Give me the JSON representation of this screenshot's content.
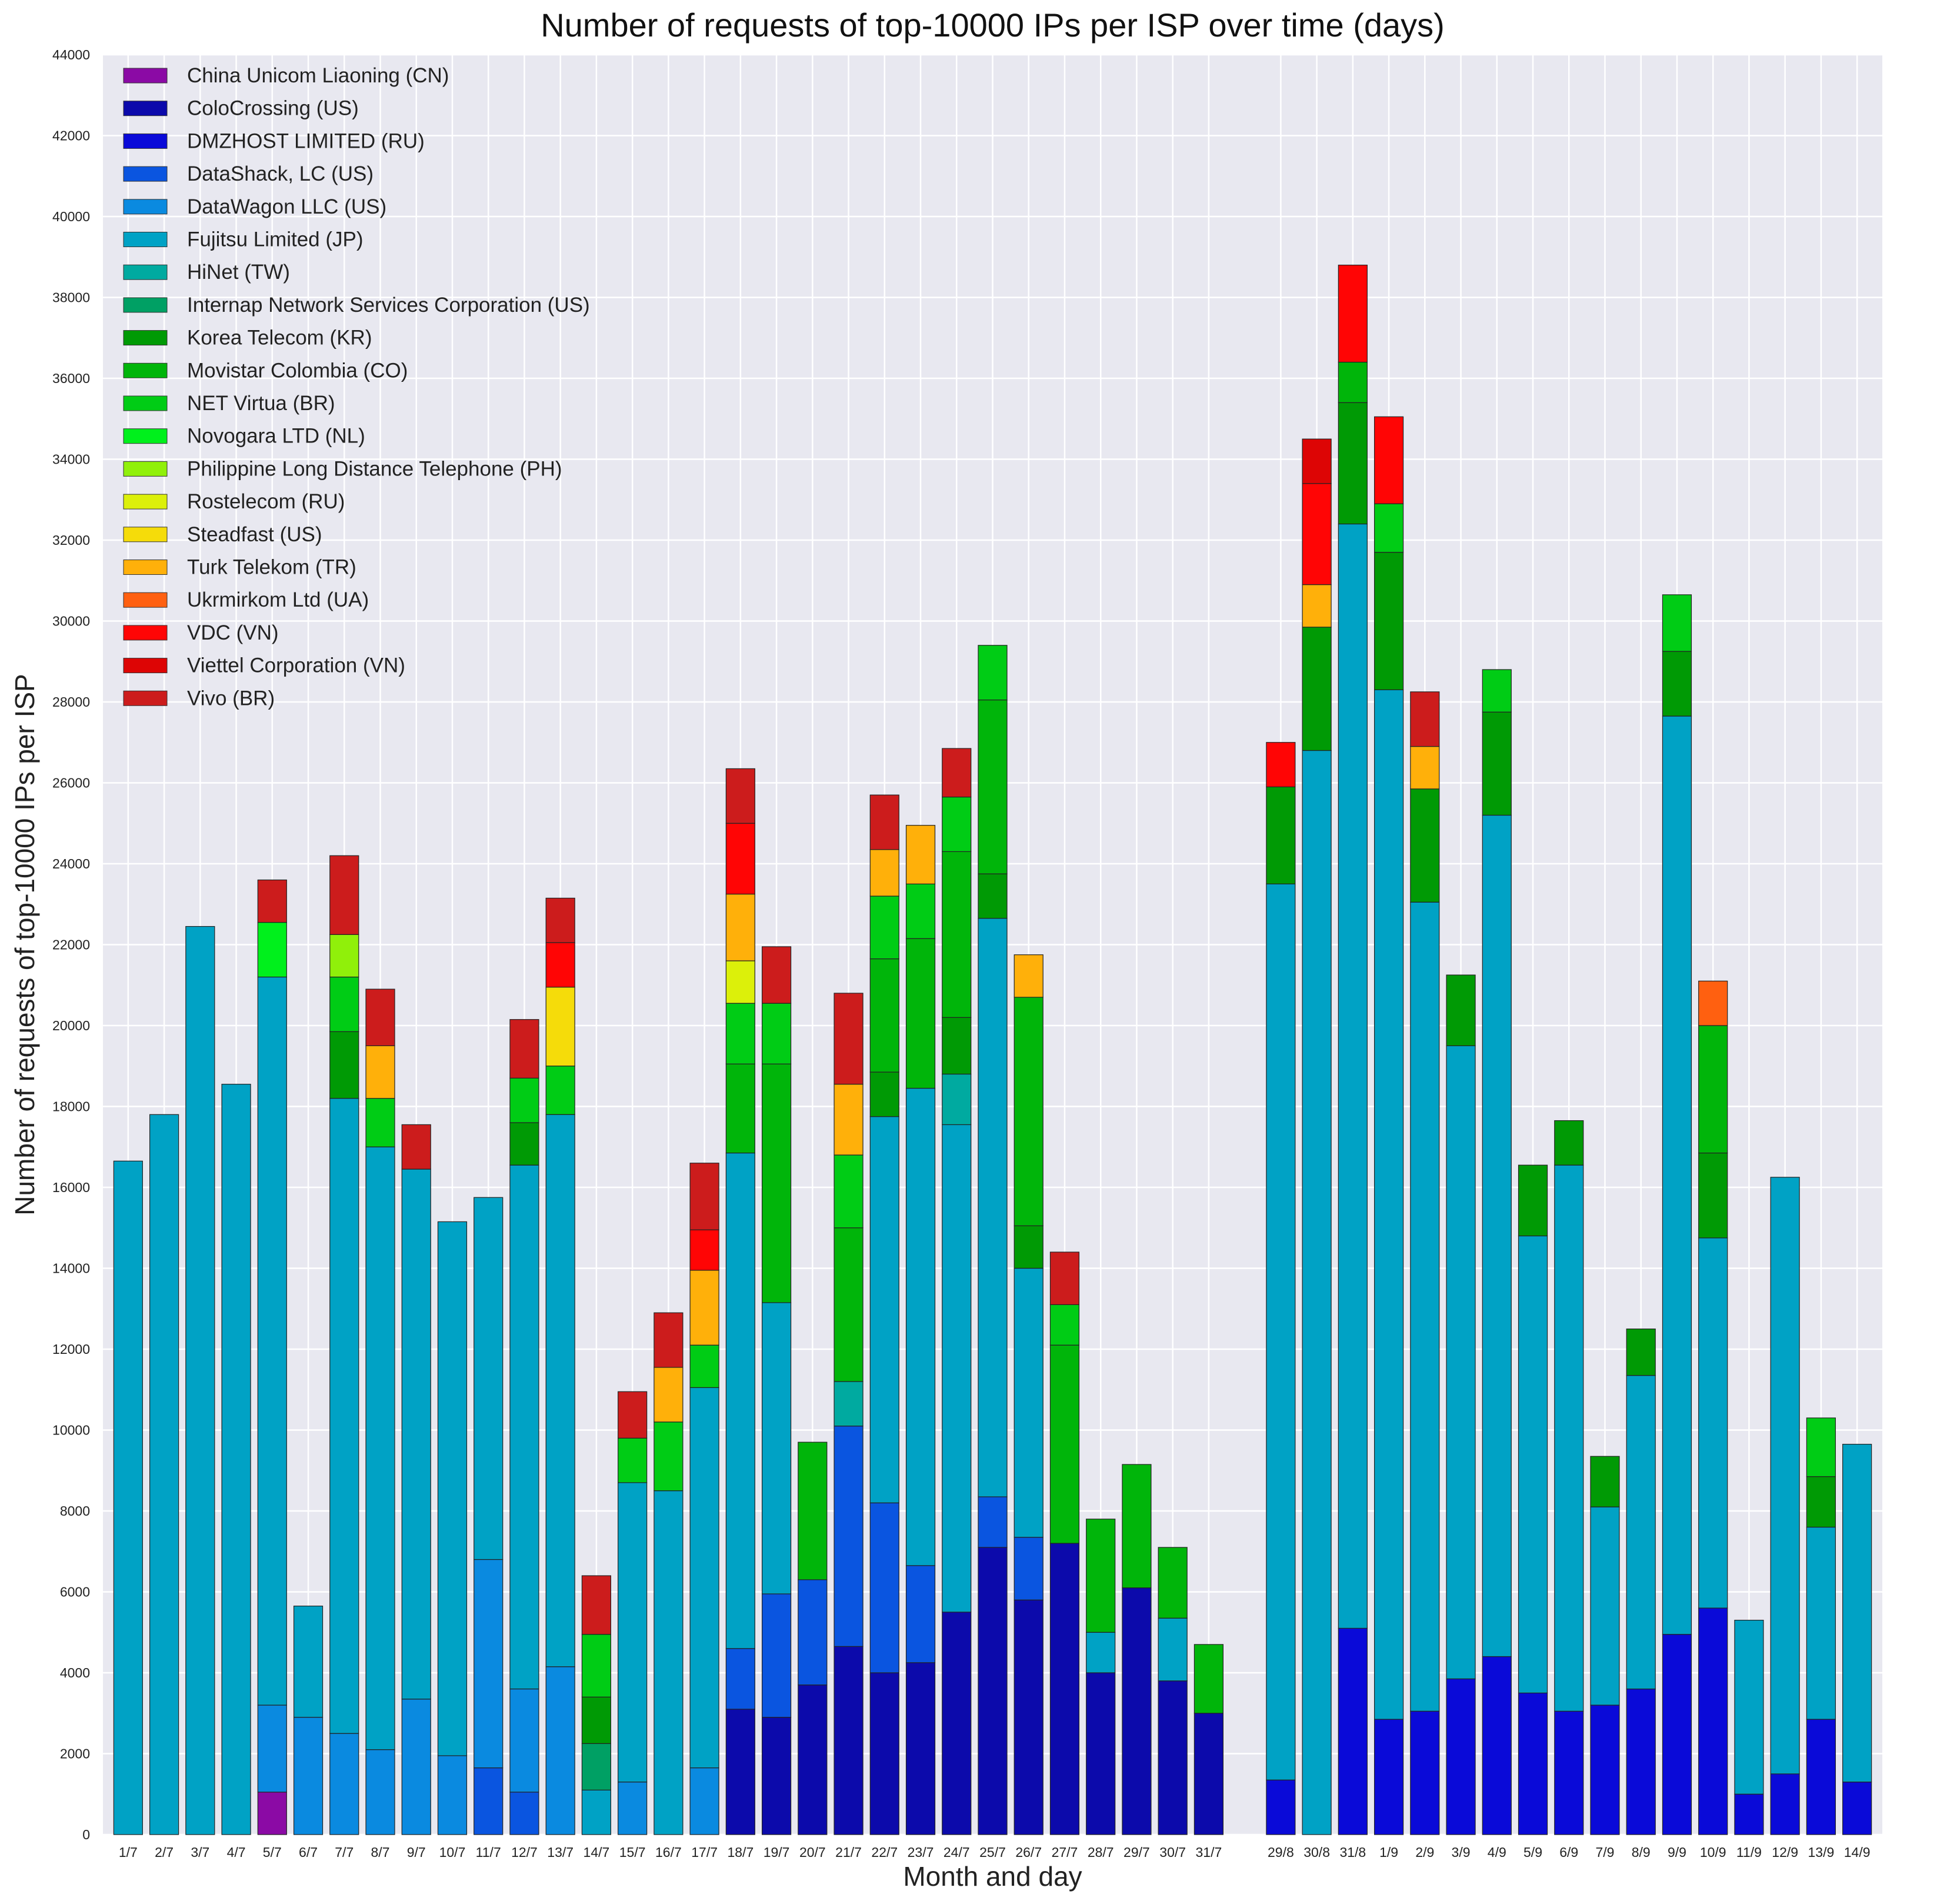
{
  "chart_data": {
    "type": "bar",
    "stacked": true,
    "title": "Number of requests of top-10000 IPs per ISP over time (days)",
    "xlabel": "Month and day",
    "ylabel": "Number of requests of top-10000 IPs per ISP",
    "ylim": [
      0,
      44000
    ],
    "yticks": [
      0,
      2000,
      4000,
      6000,
      8000,
      10000,
      12000,
      14000,
      16000,
      18000,
      20000,
      22000,
      24000,
      26000,
      28000,
      30000,
      32000,
      34000,
      36000,
      38000,
      40000,
      42000,
      44000
    ],
    "grid": true,
    "legend_position": "upper-left",
    "categories": [
      "1/7",
      "2/7",
      "3/7",
      "4/7",
      "5/7",
      "6/7",
      "7/7",
      "8/7",
      "9/7",
      "10/7",
      "11/7",
      "12/7",
      "13/7",
      "14/7",
      "15/7",
      "16/7",
      "17/7",
      "18/7",
      "19/7",
      "20/7",
      "21/7",
      "22/7",
      "23/7",
      "24/7",
      "25/7",
      "26/7",
      "27/7",
      "28/7",
      "29/7",
      "30/7",
      "31/7",
      "29/8",
      "30/8",
      "31/8",
      "1/9",
      "2/9",
      "3/9",
      "4/9",
      "5/9",
      "6/9",
      "7/9",
      "8/9",
      "9/9",
      "10/9",
      "11/9",
      "12/9",
      "13/9",
      "14/9"
    ],
    "series": [
      {
        "name": "China Unicom Liaoning (CN)",
        "color": "#8b0aa5",
        "values": [
          0,
          0,
          0,
          0,
          1050,
          0,
          0,
          0,
          0,
          0,
          0,
          0,
          0,
          0,
          0,
          0,
          0,
          0,
          0,
          0,
          0,
          0,
          0,
          0,
          0,
          0,
          0,
          0,
          0,
          0,
          0,
          0,
          0,
          0,
          0,
          0,
          0,
          0,
          0,
          0,
          0,
          0,
          0,
          0,
          0,
          0,
          0,
          0
        ]
      },
      {
        "name": "ColoCrossing (US)",
        "color": "#0c0aab",
        "values": [
          0,
          0,
          0,
          0,
          0,
          0,
          0,
          0,
          0,
          0,
          0,
          0,
          0,
          0,
          0,
          0,
          0,
          3100,
          2900,
          3700,
          4650,
          4000,
          4250,
          5500,
          7100,
          5800,
          7200,
          4000,
          6100,
          3800,
          3000,
          0,
          0,
          0,
          0,
          0,
          0,
          0,
          0,
          0,
          0,
          0,
          0,
          0,
          0,
          0,
          0,
          0
        ]
      },
      {
        "name": "DMZHOST LIMITED (RU)",
        "color": "#0a0ad8",
        "values": [
          0,
          0,
          0,
          0,
          0,
          0,
          0,
          0,
          0,
          0,
          0,
          0,
          0,
          0,
          0,
          0,
          0,
          0,
          0,
          0,
          0,
          0,
          0,
          0,
          0,
          0,
          0,
          0,
          0,
          0,
          0,
          1350,
          0,
          5100,
          2850,
          3050,
          3850,
          4400,
          3500,
          3050,
          3200,
          3600,
          4950,
          5600,
          1000,
          1500,
          2850,
          1300
        ]
      },
      {
        "name": "DataShack, LC (US)",
        "color": "#0a55e0",
        "values": [
          0,
          0,
          0,
          0,
          0,
          0,
          0,
          0,
          0,
          0,
          1650,
          1050,
          0,
          0,
          0,
          0,
          0,
          1500,
          3050,
          2600,
          5450,
          4200,
          2400,
          0,
          1250,
          1550,
          0,
          0,
          0,
          0,
          0,
          0,
          0,
          0,
          0,
          0,
          0,
          0,
          0,
          0,
          0,
          0,
          0,
          0,
          0,
          0,
          0,
          0
        ]
      },
      {
        "name": "DataWagon LLC (US)",
        "color": "#0a8ae0",
        "values": [
          0,
          0,
          0,
          0,
          2150,
          2900,
          2500,
          2100,
          3350,
          1950,
          5150,
          2550,
          4150,
          0,
          1300,
          0,
          1650,
          0,
          0,
          0,
          0,
          0,
          0,
          0,
          0,
          0,
          0,
          0,
          0,
          0,
          0,
          0,
          0,
          0,
          0,
          0,
          0,
          0,
          0,
          0,
          0,
          0,
          0,
          0,
          0,
          0,
          0,
          0
        ]
      },
      {
        "name": "Fujitsu Limited (JP)",
        "color": "#00a2c5",
        "values": [
          16650,
          17800,
          22450,
          18550,
          18000,
          2750,
          15700,
          14900,
          13100,
          13200,
          8950,
          12950,
          13650,
          1100,
          7400,
          8500,
          9400,
          12250,
          7200,
          0,
          0,
          9550,
          11800,
          12050,
          14300,
          6650,
          0,
          1000,
          0,
          1550,
          0,
          22150,
          26800,
          27300,
          25450,
          20000,
          15650,
          20800,
          11300,
          13500,
          4900,
          7750,
          22700,
          9150,
          4300,
          14750,
          4750,
          8350
        ]
      },
      {
        "name": "HiNet (TW)",
        "color": "#00aaa0",
        "values": [
          0,
          0,
          0,
          0,
          0,
          0,
          0,
          0,
          0,
          0,
          0,
          0,
          0,
          0,
          0,
          0,
          0,
          0,
          0,
          0,
          1100,
          0,
          0,
          1250,
          0,
          0,
          0,
          0,
          0,
          0,
          0,
          0,
          0,
          0,
          0,
          0,
          0,
          0,
          0,
          0,
          0,
          0,
          0,
          0,
          0,
          0,
          0,
          0
        ]
      },
      {
        "name": "Internap Network Services Corporation (US)",
        "color": "#00a064",
        "values": [
          0,
          0,
          0,
          0,
          0,
          0,
          0,
          0,
          0,
          0,
          0,
          0,
          0,
          1150,
          0,
          0,
          0,
          0,
          0,
          0,
          0,
          0,
          0,
          0,
          0,
          0,
          0,
          0,
          0,
          0,
          0,
          0,
          0,
          0,
          0,
          0,
          0,
          0,
          0,
          0,
          0,
          0,
          0,
          0,
          0,
          0,
          0,
          0
        ]
      },
      {
        "name": "Korea Telecom (KR)",
        "color": "#009a05",
        "values": [
          0,
          0,
          0,
          0,
          0,
          0,
          1650,
          0,
          0,
          0,
          0,
          1050,
          0,
          1150,
          0,
          0,
          0,
          0,
          0,
          0,
          0,
          1100,
          0,
          1400,
          1100,
          1050,
          0,
          0,
          0,
          0,
          0,
          2400,
          3050,
          3000,
          3400,
          2800,
          1750,
          2550,
          1750,
          1100,
          1250,
          1150,
          1600,
          2100,
          0,
          0,
          1250,
          0
        ]
      },
      {
        "name": "Movistar Colombia (CO)",
        "color": "#00b50a",
        "values": [
          0,
          0,
          0,
          0,
          0,
          0,
          0,
          0,
          0,
          0,
          0,
          0,
          0,
          0,
          0,
          0,
          0,
          2200,
          5900,
          3400,
          3800,
          2800,
          3700,
          4100,
          4300,
          5650,
          4900,
          2800,
          3050,
          1750,
          1700,
          0,
          0,
          1000,
          0,
          0,
          0,
          0,
          0,
          0,
          0,
          0,
          0,
          3150,
          0,
          0,
          0,
          0
        ]
      },
      {
        "name": "NET Virtua (BR)",
        "color": "#00cc15",
        "values": [
          0,
          0,
          0,
          0,
          0,
          0,
          1350,
          1200,
          0,
          0,
          0,
          1100,
          1200,
          1550,
          1100,
          1700,
          1050,
          1500,
          1500,
          0,
          1800,
          1550,
          1350,
          1350,
          1350,
          0,
          1000,
          0,
          0,
          0,
          0,
          0,
          0,
          0,
          1200,
          0,
          0,
          1050,
          0,
          0,
          0,
          0,
          1400,
          0,
          0,
          0,
          1450,
          0
        ]
      },
      {
        "name": "Novogara LTD (NL)",
        "color": "#00f01c",
        "values": [
          0,
          0,
          0,
          0,
          1350,
          0,
          0,
          0,
          0,
          0,
          0,
          0,
          0,
          0,
          0,
          0,
          0,
          0,
          0,
          0,
          0,
          0,
          0,
          0,
          0,
          0,
          0,
          0,
          0,
          0,
          0,
          0,
          0,
          0,
          0,
          0,
          0,
          0,
          0,
          0,
          0,
          0,
          0,
          0,
          0,
          0,
          0,
          0
        ]
      },
      {
        "name": "Philippine Long Distance Telephone (PH)",
        "color": "#90f00a",
        "values": [
          0,
          0,
          0,
          0,
          0,
          0,
          1050,
          0,
          0,
          0,
          0,
          0,
          0,
          0,
          0,
          0,
          0,
          0,
          0,
          0,
          0,
          0,
          0,
          0,
          0,
          0,
          0,
          0,
          0,
          0,
          0,
          0,
          0,
          0,
          0,
          0,
          0,
          0,
          0,
          0,
          0,
          0,
          0,
          0,
          0,
          0,
          0,
          0
        ]
      },
      {
        "name": "Rostelecom (RU)",
        "color": "#dcf00a",
        "values": [
          0,
          0,
          0,
          0,
          0,
          0,
          0,
          0,
          0,
          0,
          0,
          0,
          0,
          0,
          0,
          0,
          0,
          1050,
          0,
          0,
          0,
          0,
          0,
          0,
          0,
          0,
          0,
          0,
          0,
          0,
          0,
          0,
          0,
          0,
          0,
          0,
          0,
          0,
          0,
          0,
          0,
          0,
          0,
          0,
          0,
          0,
          0,
          0
        ]
      },
      {
        "name": "Steadfast (US)",
        "color": "#f5dc0a",
        "values": [
          0,
          0,
          0,
          0,
          0,
          0,
          0,
          0,
          0,
          0,
          0,
          0,
          1950,
          0,
          0,
          0,
          0,
          0,
          0,
          0,
          0,
          0,
          0,
          0,
          0,
          0,
          0,
          0,
          0,
          0,
          0,
          0,
          0,
          0,
          0,
          0,
          0,
          0,
          0,
          0,
          0,
          0,
          0,
          0,
          0,
          0,
          0,
          0
        ]
      },
      {
        "name": "Turk Telekom (TR)",
        "color": "#ffb00a",
        "values": [
          0,
          0,
          0,
          0,
          0,
          0,
          0,
          1300,
          0,
          0,
          0,
          0,
          0,
          0,
          0,
          1350,
          1850,
          1650,
          0,
          0,
          1750,
          1150,
          1450,
          0,
          0,
          1050,
          0,
          0,
          0,
          0,
          0,
          0,
          1050,
          0,
          0,
          1050,
          0,
          0,
          0,
          0,
          0,
          0,
          0,
          0,
          0,
          0,
          0,
          0
        ]
      },
      {
        "name": "Ukrmirkom Ltd (UA)",
        "color": "#ff6010",
        "values": [
          0,
          0,
          0,
          0,
          0,
          0,
          0,
          0,
          0,
          0,
          0,
          0,
          0,
          0,
          0,
          0,
          0,
          0,
          0,
          0,
          0,
          0,
          0,
          0,
          0,
          0,
          0,
          0,
          0,
          0,
          0,
          0,
          0,
          0,
          0,
          0,
          0,
          0,
          0,
          0,
          0,
          0,
          0,
          1100,
          0,
          0,
          0,
          0
        ]
      },
      {
        "name": "VDC (VN)",
        "color": "#ff0505",
        "values": [
          0,
          0,
          0,
          0,
          0,
          0,
          0,
          0,
          0,
          0,
          0,
          0,
          1100,
          0,
          0,
          0,
          1000,
          1750,
          0,
          0,
          0,
          0,
          0,
          0,
          0,
          0,
          0,
          0,
          0,
          0,
          0,
          1100,
          2500,
          2400,
          2150,
          0,
          0,
          0,
          0,
          0,
          0,
          0,
          0,
          0,
          0,
          0,
          0,
          0
        ]
      },
      {
        "name": "Viettel Corporation (VN)",
        "color": "#dd0505",
        "values": [
          0,
          0,
          0,
          0,
          0,
          0,
          0,
          0,
          0,
          0,
          0,
          0,
          0,
          0,
          0,
          0,
          0,
          0,
          0,
          0,
          0,
          0,
          0,
          0,
          0,
          0,
          0,
          0,
          0,
          0,
          0,
          0,
          1100,
          0,
          0,
          0,
          0,
          0,
          0,
          0,
          0,
          0,
          0,
          0,
          0,
          0,
          0,
          0
        ]
      },
      {
        "name": "Vivo (BR)",
        "color": "#cc1c1c",
        "values": [
          0,
          0,
          0,
          0,
          1050,
          0,
          1950,
          1400,
          1100,
          0,
          0,
          1450,
          1100,
          1450,
          1150,
          1350,
          1650,
          1350,
          1400,
          0,
          2250,
          1350,
          0,
          1200,
          0,
          0,
          1300,
          0,
          0,
          0,
          0,
          0,
          0,
          0,
          0,
          1350,
          0,
          0,
          0,
          0,
          0,
          0,
          0,
          0,
          0,
          0,
          0,
          0
        ]
      }
    ]
  }
}
